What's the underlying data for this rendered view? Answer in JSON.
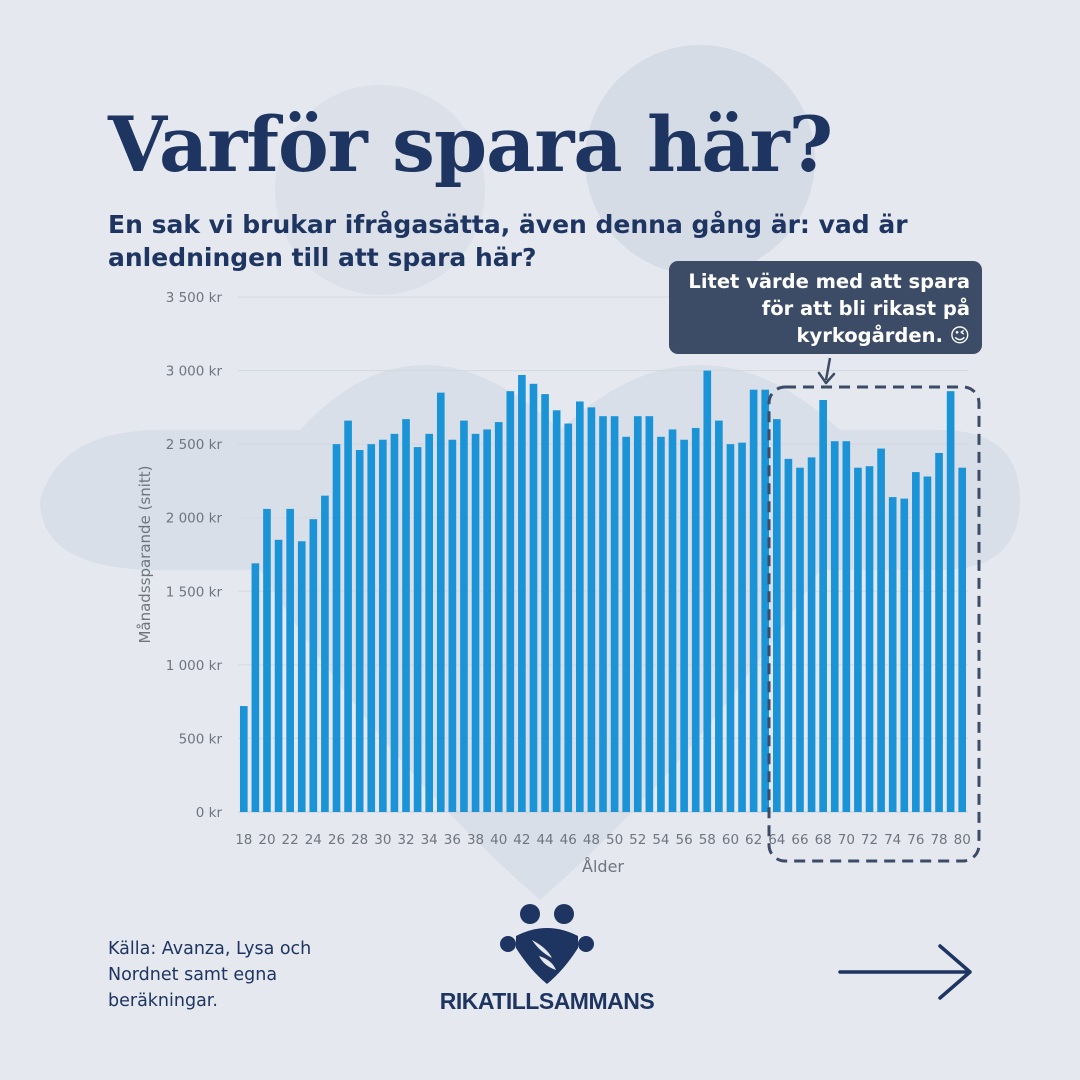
{
  "title": "Varför spara här?",
  "subtitle": "En sak vi brukar ifrågasätta, även denna gång är: vad är anledningen till att spara här?",
  "callout": "Litet värde med att spara för att bli rikast på kyrkogården. 😉",
  "source": "Källa: Avanza, Lysa och Nordnet samt egna beräkningar.",
  "brand": "RIKATILLSAMMANS",
  "colors": {
    "background": "#e5e9ef",
    "bar": "#1a94d6",
    "navy": "#1e3461",
    "callout_bg": "#3c4b66",
    "highlight_border": "#3c4b66"
  },
  "icons": {
    "logo": "two-people-heart-logo-icon",
    "next": "arrow-right-icon"
  },
  "chart_data": {
    "type": "bar",
    "xlabel": "Ålder",
    "ylabel": "Månadssparande (snitt)",
    "ylim": [
      0,
      3500
    ],
    "y_ticks": [
      0,
      500,
      1000,
      1500,
      2000,
      2500,
      3000,
      3500
    ],
    "y_tick_labels": [
      "0 kr",
      "500 kr",
      "1 000 kr",
      "1 500 kr",
      "2 000 kr",
      "2 500 kr",
      "3 000 kr",
      "3 500 kr"
    ],
    "grid": true,
    "categories": [
      18,
      19,
      20,
      21,
      22,
      23,
      24,
      25,
      26,
      27,
      28,
      29,
      30,
      31,
      32,
      33,
      34,
      35,
      36,
      37,
      38,
      39,
      40,
      41,
      42,
      43,
      44,
      45,
      46,
      47,
      48,
      49,
      50,
      51,
      52,
      53,
      54,
      55,
      56,
      57,
      58,
      59,
      60,
      61,
      62,
      63,
      64,
      65,
      66,
      67,
      68,
      69,
      70,
      71,
      72,
      73,
      74,
      75,
      76,
      77,
      78,
      79,
      80
    ],
    "x_tick_labels": [
      "18",
      "20",
      "22",
      "24",
      "26",
      "28",
      "30",
      "32",
      "34",
      "36",
      "38",
      "40",
      "42",
      "44",
      "46",
      "48",
      "50",
      "52",
      "54",
      "56",
      "58",
      "60",
      "62",
      "64",
      "66",
      "68",
      "70",
      "72",
      "74",
      "76",
      "78",
      "80"
    ],
    "values": [
      720,
      1690,
      2060,
      1850,
      2060,
      1840,
      1990,
      2150,
      2500,
      2660,
      2460,
      2500,
      2530,
      2570,
      2670,
      2480,
      2570,
      2850,
      2530,
      2660,
      2570,
      2600,
      2650,
      2860,
      2970,
      2910,
      2840,
      2730,
      2640,
      2790,
      2750,
      2690,
      2690,
      2550,
      2690,
      2690,
      2550,
      2600,
      2530,
      2610,
      3000,
      2660,
      2500,
      2510,
      2870,
      2870,
      2670,
      2400,
      2340,
      2410,
      2800,
      2520,
      2520,
      2340,
      2350,
      2470,
      2140,
      2130,
      2310,
      2280,
      2440,
      2860,
      2340
    ],
    "highlight_range": [
      64,
      80
    ]
  }
}
